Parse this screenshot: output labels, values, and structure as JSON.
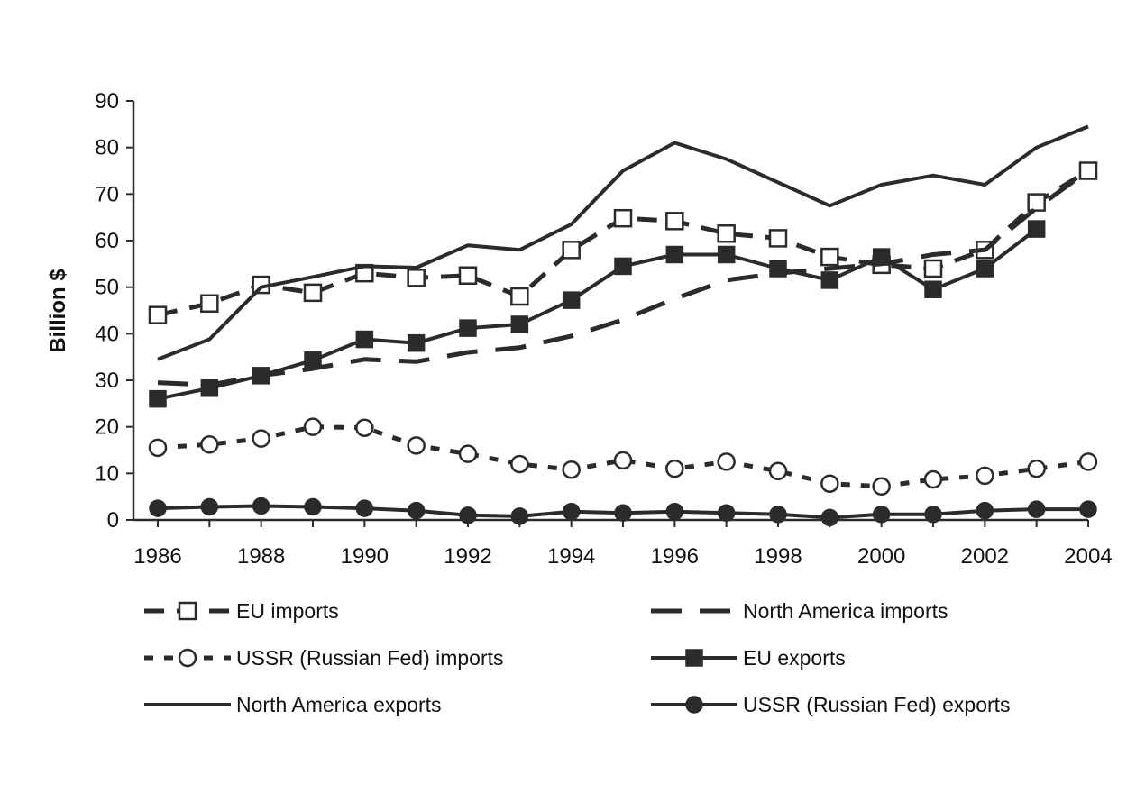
{
  "chart_data": {
    "type": "line",
    "title": "",
    "xlabel": "",
    "ylabel": "Billion $",
    "ylim": [
      0,
      90
    ],
    "yticks": [
      "0",
      "10",
      "20",
      "30",
      "40",
      "50",
      "60",
      "70",
      "80",
      "90"
    ],
    "x": [
      1986,
      1987,
      1988,
      1989,
      1990,
      1991,
      1992,
      1993,
      1994,
      1995,
      1996,
      1997,
      1998,
      1999,
      2000,
      2001,
      2002,
      2003,
      2004
    ],
    "xticks": [
      "1986",
      "1988",
      "1990",
      "1992",
      "1994",
      "1996",
      "1998",
      "2000",
      "2002",
      "2004"
    ],
    "grid": false,
    "legend_position": "bottom",
    "series": [
      {
        "name": "EU imports",
        "style": "dash",
        "marker": "open-square",
        "values": [
          44,
          46.5,
          50.5,
          48.8,
          53,
          52,
          52.5,
          48,
          58,
          64.8,
          64.2,
          61.5,
          60.5,
          56.5,
          54.8,
          54,
          58,
          68.2,
          75
        ]
      },
      {
        "name": "North America imports",
        "style": "longdash",
        "marker": "none",
        "values": [
          29.5,
          29,
          31,
          32.5,
          34.5,
          34,
          36,
          37,
          39.5,
          43,
          47.5,
          51.5,
          53,
          54,
          55,
          57,
          58,
          67,
          75
        ]
      },
      {
        "name": "USSR (Russian Fed) imports",
        "style": "dot",
        "marker": "open-circle",
        "values": [
          15.5,
          16.2,
          17.5,
          20,
          19.8,
          16,
          14.2,
          12,
          10.8,
          12.8,
          11,
          12.5,
          10.5,
          7.8,
          7.2,
          8.7,
          9.5,
          11,
          12.5
        ]
      },
      {
        "name": "EU exports",
        "style": "solid",
        "marker": "filled-square",
        "values": [
          26,
          28.3,
          31,
          34.3,
          38.8,
          38,
          41.2,
          42,
          47.2,
          54.5,
          57,
          57,
          54,
          51.5,
          56.5,
          49.5,
          54,
          62.5,
          null
        ]
      },
      {
        "name": "North America exports",
        "style": "solid",
        "marker": "none",
        "values": [
          34.5,
          38.8,
          50,
          52.2,
          54.5,
          54.2,
          59,
          58,
          63.5,
          75,
          81,
          77.5,
          72.5,
          67.5,
          72,
          74,
          72,
          80,
          84.5
        ]
      },
      {
        "name": "USSR (Russian Fed) exports",
        "style": "solid",
        "marker": "filled-circle",
        "values": [
          2.5,
          2.8,
          3,
          2.8,
          2.5,
          2,
          1,
          0.8,
          1.8,
          1.5,
          1.8,
          1.5,
          1.2,
          0.5,
          1.2,
          1.2,
          2,
          2.3,
          2.3
        ]
      }
    ],
    "legend": [
      {
        "label": "EU imports",
        "series": 0,
        "column": 0,
        "row": 0
      },
      {
        "label": "North America imports",
        "series": 1,
        "column": 1,
        "row": 0
      },
      {
        "label": "USSR (Russian Fed) imports",
        "series": 2,
        "column": 0,
        "row": 1
      },
      {
        "label": "EU exports",
        "series": 3,
        "column": 1,
        "row": 1
      },
      {
        "label": "North America exports",
        "series": 4,
        "column": 0,
        "row": 2
      },
      {
        "label": "USSR (Russian Fed) exports",
        "series": 5,
        "column": 1,
        "row": 2
      }
    ]
  }
}
